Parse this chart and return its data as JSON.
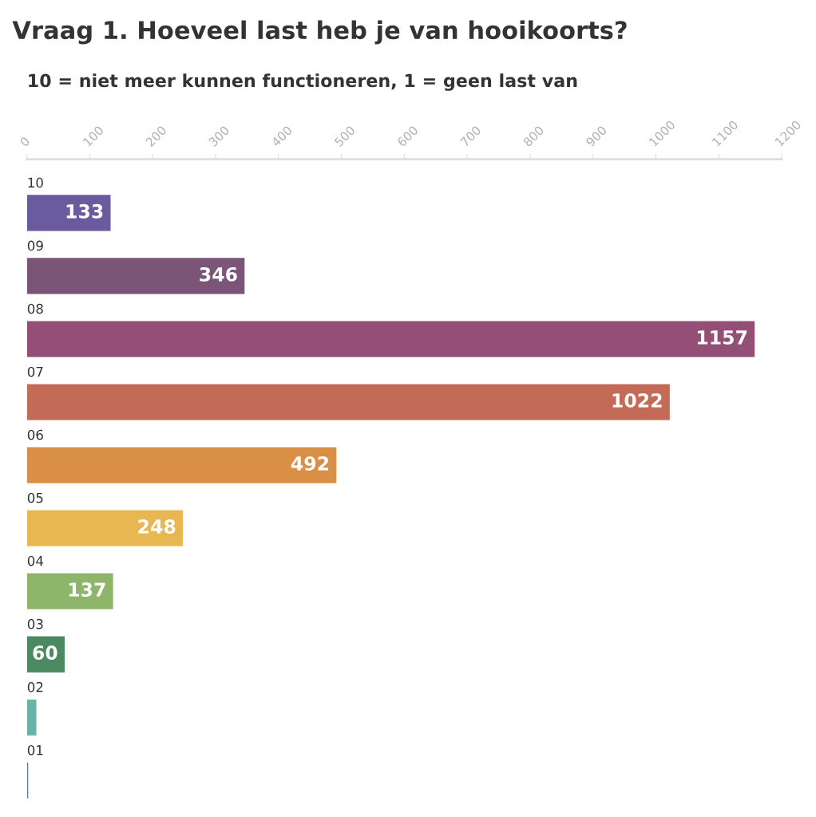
{
  "chart_data": {
    "type": "bar",
    "orientation": "horizontal",
    "title": "Vraag 1. Hoeveel last heb je van hooikoorts?",
    "subtitle": "10 = niet meer kunnen functioneren, 1 = geen last van",
    "categories": [
      "10",
      "09",
      "08",
      "07",
      "06",
      "05",
      "04",
      "03",
      "02",
      "01"
    ],
    "values": [
      133,
      346,
      1157,
      1022,
      492,
      248,
      137,
      60,
      15,
      2
    ],
    "value_labels": [
      "133",
      "346",
      "1157",
      "1022",
      "492",
      "248",
      "137",
      "60",
      null,
      null
    ],
    "colors": [
      "#6a5a9e",
      "#7a5578",
      "#944f77",
      "#c46b57",
      "#d98f45",
      "#e8b752",
      "#8db66a",
      "#4b8a60",
      "#6bb3aa",
      "#5b7fa6"
    ],
    "xlim": [
      0,
      1200
    ],
    "xticks": [
      0,
      100,
      200,
      300,
      400,
      500,
      600,
      700,
      800,
      900,
      1000,
      1100,
      1200
    ],
    "grid": false
  }
}
